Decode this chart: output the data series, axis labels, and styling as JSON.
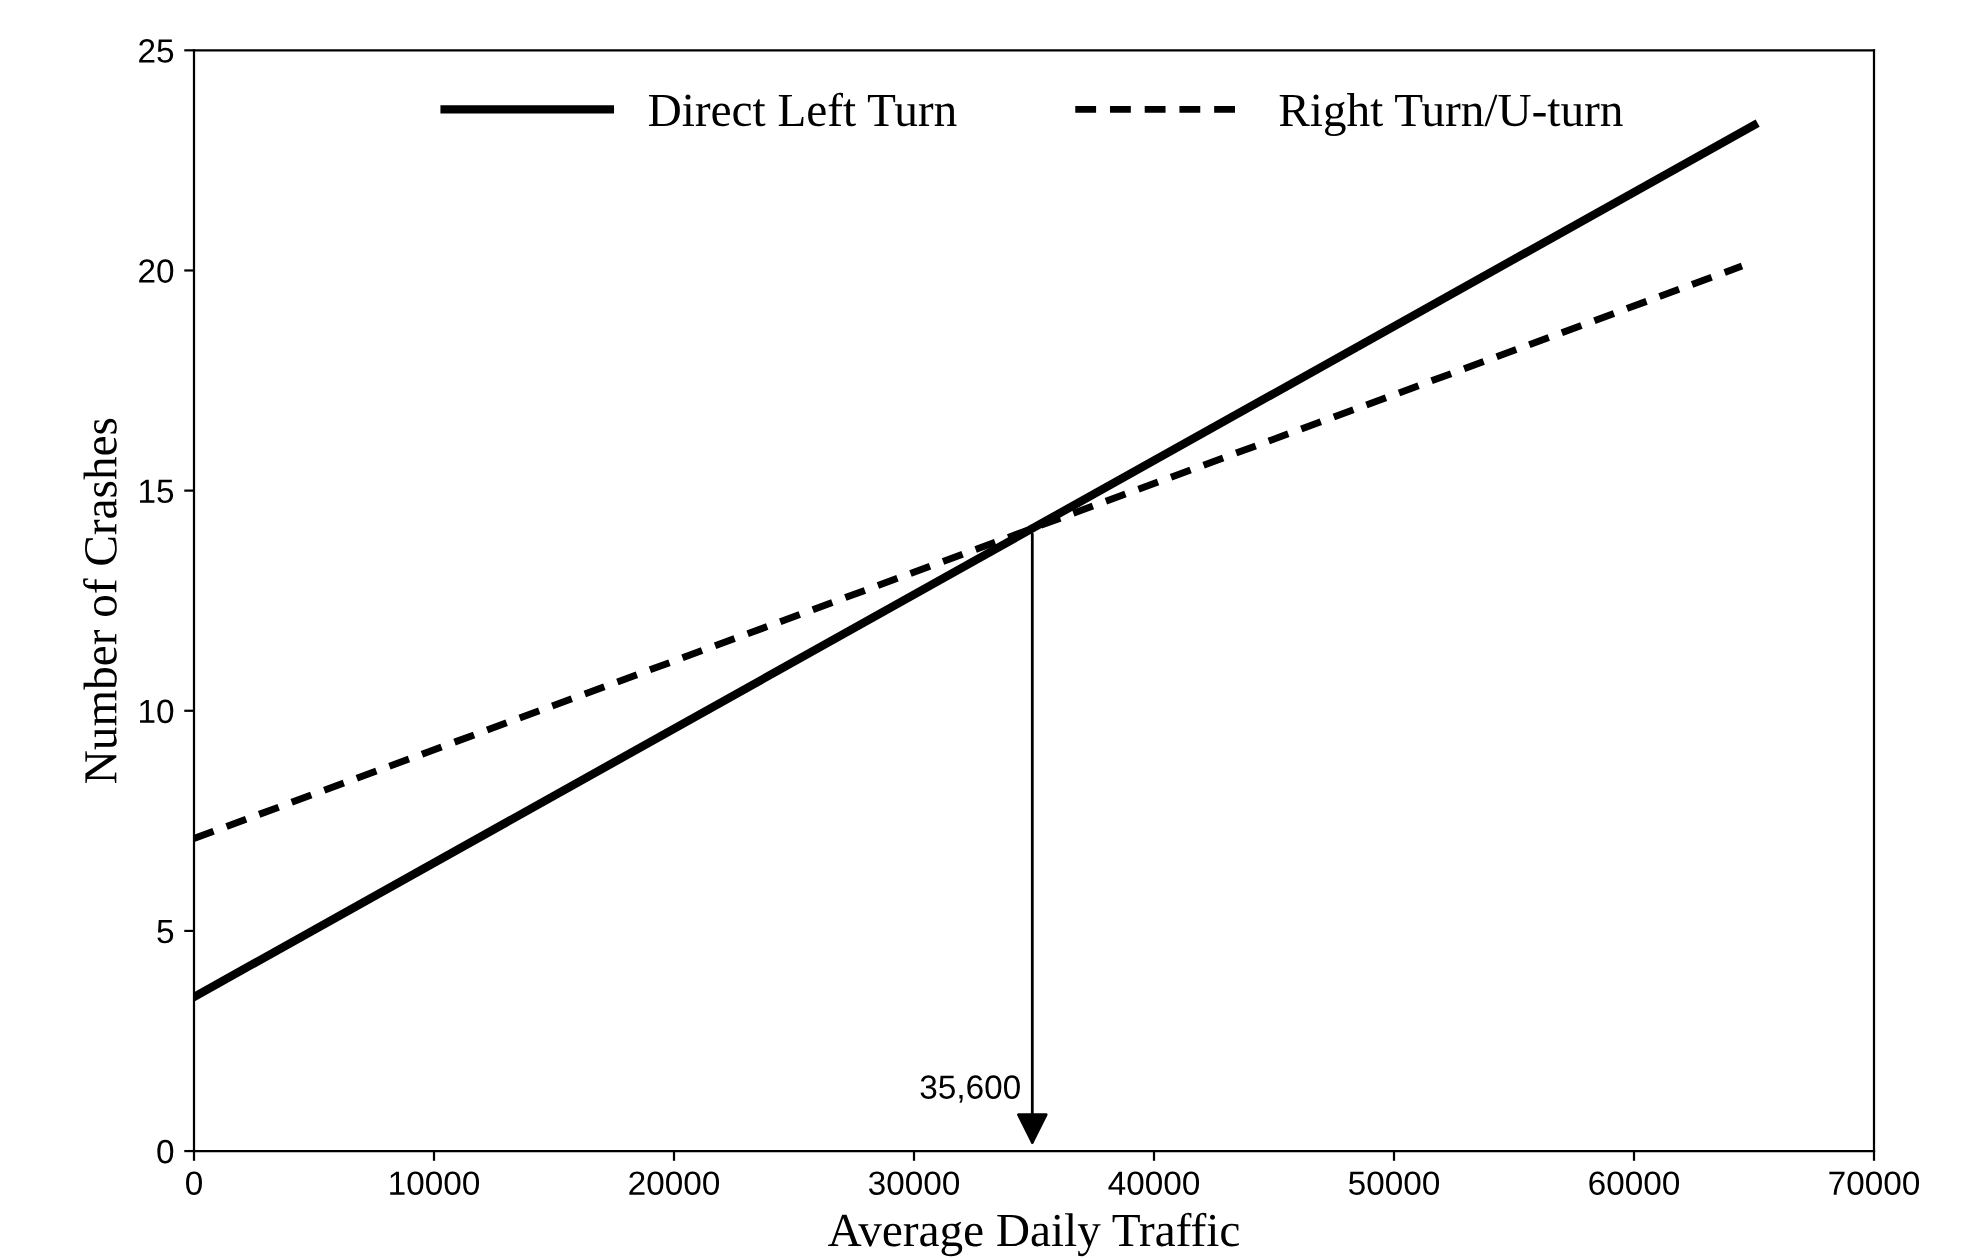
{
  "chart_data": {
    "type": "line",
    "xlabel": "Average Daily Traffic",
    "ylabel": "Number of Crashes",
    "series": [
      {
        "name": "Direct Left Turn",
        "color": "#000000",
        "x": [
          0,
          65000
        ],
        "values": [
          3.5,
          23.3
        ],
        "line_style": "solid"
      },
      {
        "name": "Right Turn/U-turn",
        "color": "#000000",
        "x": [
          0,
          64500
        ],
        "values": [
          7.1,
          20.1
        ],
        "line_style": "dashed"
      }
    ],
    "annotations": [
      "35,600"
    ],
    "xlim": [
      0,
      70000
    ],
    "xticks": [
      0,
      10000,
      20000,
      30000,
      40000,
      50000,
      60000,
      70000
    ],
    "ylim": [
      0,
      25
    ],
    "yticks": [
      0,
      5,
      10,
      15,
      20,
      25
    ],
    "grid": false,
    "legend": "top",
    "marker": "none"
  }
}
